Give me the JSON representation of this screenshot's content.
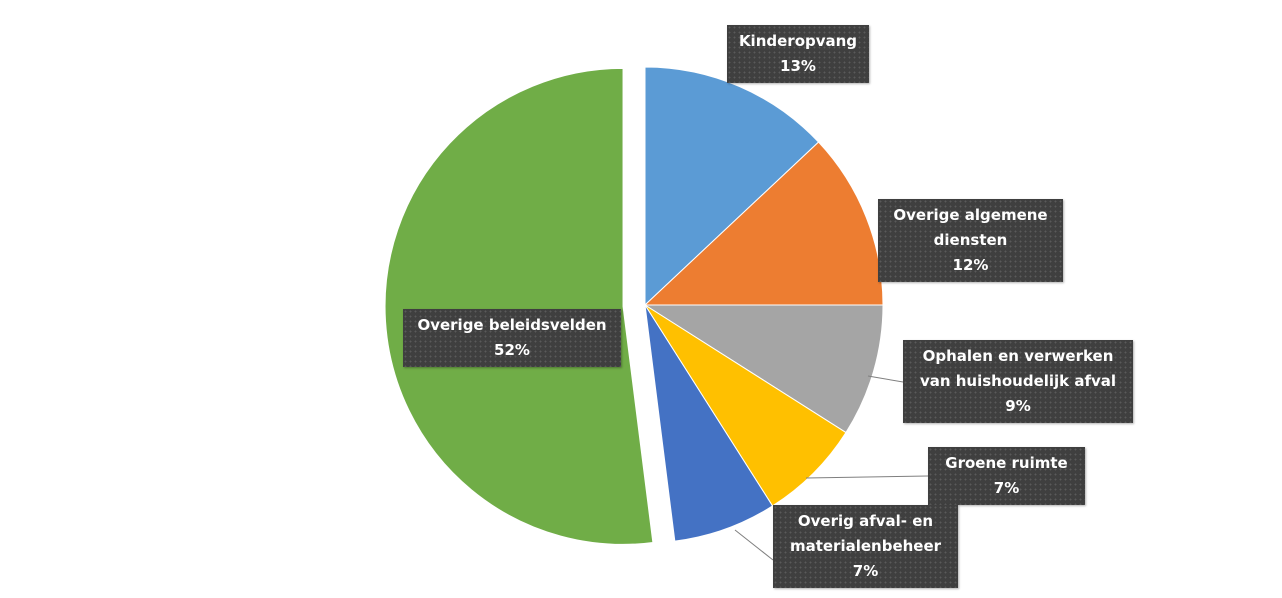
{
  "chart_data": {
    "type": "pie",
    "categories": [
      "Kinderopvang",
      "Overige algemene diensten",
      "Ophalen en verwerken van huishoudelijk afval",
      "Groene ruimte",
      "Overig afval- en materialenbeheer",
      "Overige beleidsvelden"
    ],
    "values": [
      13,
      12,
      9,
      7,
      7,
      52
    ],
    "value_labels": [
      "13%",
      "12%",
      "9%",
      "7%",
      "7%",
      "52%"
    ],
    "colors": [
      "#5b9bd5",
      "#ed7d31",
      "#a5a5a5",
      "#ffc000",
      "#4472c4",
      "#70ad47"
    ]
  }
}
